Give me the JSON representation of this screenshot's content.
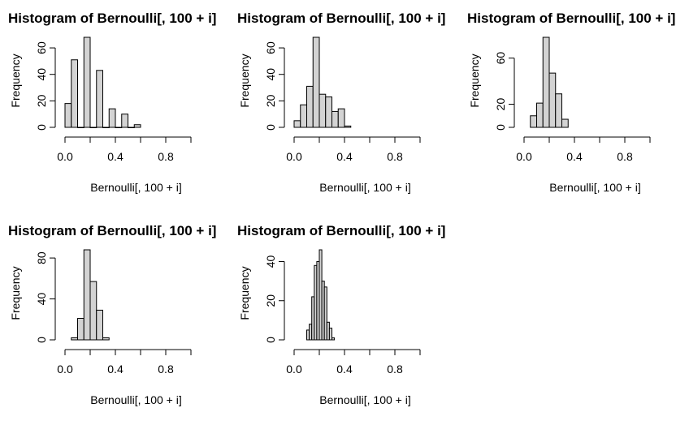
{
  "chart_data": [
    {
      "type": "bar",
      "title": "Histogram of Bernoulli[, 100 + i]",
      "xlabel": "Bernoulli[, 100 + i]",
      "ylabel": "Frequency",
      "xlim": [
        0,
        1
      ],
      "ylim": [
        0,
        68
      ],
      "x_ticks": [
        "0.0",
        "0.4",
        "0.8"
      ],
      "y_ticks": [
        "0",
        "20",
        "40",
        "60"
      ],
      "bins": [
        {
          "x0": 0.0,
          "x1": 0.05,
          "count": 18
        },
        {
          "x0": 0.05,
          "x1": 0.1,
          "count": 51
        },
        {
          "x0": 0.1,
          "x1": 0.15,
          "count": 0
        },
        {
          "x0": 0.15,
          "x1": 0.2,
          "count": 68
        },
        {
          "x0": 0.2,
          "x1": 0.25,
          "count": 0
        },
        {
          "x0": 0.25,
          "x1": 0.3,
          "count": 43
        },
        {
          "x0": 0.3,
          "x1": 0.35,
          "count": 0
        },
        {
          "x0": 0.35,
          "x1": 0.4,
          "count": 14
        },
        {
          "x0": 0.4,
          "x1": 0.45,
          "count": 0
        },
        {
          "x0": 0.45,
          "x1": 0.5,
          "count": 10
        },
        {
          "x0": 0.5,
          "x1": 0.55,
          "count": 0
        },
        {
          "x0": 0.55,
          "x1": 0.6,
          "count": 2
        }
      ]
    },
    {
      "type": "bar",
      "title": "Histogram of Bernoulli[, 100 + i]",
      "xlabel": "Bernoulli[, 100 + i]",
      "ylabel": "Frequency",
      "xlim": [
        0,
        1
      ],
      "ylim": [
        0,
        68
      ],
      "x_ticks": [
        "0.0",
        "0.4",
        "0.8"
      ],
      "y_ticks": [
        "0",
        "20",
        "40",
        "60"
      ],
      "bins": [
        {
          "x0": 0.0,
          "x1": 0.05,
          "count": 5
        },
        {
          "x0": 0.05,
          "x1": 0.1,
          "count": 17
        },
        {
          "x0": 0.1,
          "x1": 0.15,
          "count": 31
        },
        {
          "x0": 0.15,
          "x1": 0.2,
          "count": 68
        },
        {
          "x0": 0.2,
          "x1": 0.25,
          "count": 25
        },
        {
          "x0": 0.25,
          "x1": 0.3,
          "count": 23
        },
        {
          "x0": 0.3,
          "x1": 0.35,
          "count": 12
        },
        {
          "x0": 0.35,
          "x1": 0.4,
          "count": 14
        },
        {
          "x0": 0.4,
          "x1": 0.45,
          "count": 1
        }
      ]
    },
    {
      "type": "bar",
      "title": "Histogram of Bernoulli[, 100 + i]",
      "xlabel": "Bernoulli[, 100 + i]",
      "ylabel": "Frequency",
      "xlim": [
        0,
        1
      ],
      "ylim": [
        0,
        78
      ],
      "x_ticks": [
        "0.0",
        "0.4",
        "0.8"
      ],
      "y_ticks": [
        "0",
        "20",
        "60"
      ],
      "bins": [
        {
          "x0": 0.05,
          "x1": 0.1,
          "count": 10
        },
        {
          "x0": 0.1,
          "x1": 0.15,
          "count": 21
        },
        {
          "x0": 0.15,
          "x1": 0.2,
          "count": 78
        },
        {
          "x0": 0.2,
          "x1": 0.25,
          "count": 47
        },
        {
          "x0": 0.25,
          "x1": 0.3,
          "count": 29
        },
        {
          "x0": 0.3,
          "x1": 0.35,
          "count": 7
        }
      ]
    },
    {
      "type": "bar",
      "title": "Histogram of Bernoulli[, 100 + i]",
      "xlabel": "Bernoulli[, 100 + i]",
      "ylabel": "Frequency",
      "xlim": [
        0,
        1
      ],
      "ylim": [
        0,
        88
      ],
      "x_ticks": [
        "0.0",
        "0.4",
        "0.8"
      ],
      "y_ticks": [
        "0",
        "40",
        "80"
      ],
      "bins": [
        {
          "x0": 0.05,
          "x1": 0.1,
          "count": 2
        },
        {
          "x0": 0.1,
          "x1": 0.15,
          "count": 21
        },
        {
          "x0": 0.15,
          "x1": 0.2,
          "count": 88
        },
        {
          "x0": 0.2,
          "x1": 0.25,
          "count": 57
        },
        {
          "x0": 0.25,
          "x1": 0.3,
          "count": 29
        },
        {
          "x0": 0.3,
          "x1": 0.35,
          "count": 2
        }
      ]
    },
    {
      "type": "bar",
      "title": "Histogram of Bernoulli[, 100 + i]",
      "xlabel": "Bernoulli[, 100 + i]",
      "ylabel": "Frequency",
      "xlim": [
        0,
        1
      ],
      "ylim": [
        0,
        46
      ],
      "x_ticks": [
        "0.0",
        "0.4",
        "0.8"
      ],
      "y_ticks": [
        "0",
        "20",
        "40"
      ],
      "bins": [
        {
          "x0": 0.1,
          "x1": 0.12,
          "count": 5
        },
        {
          "x0": 0.12,
          "x1": 0.14,
          "count": 8
        },
        {
          "x0": 0.14,
          "x1": 0.16,
          "count": 22
        },
        {
          "x0": 0.16,
          "x1": 0.18,
          "count": 38
        },
        {
          "x0": 0.18,
          "x1": 0.2,
          "count": 40
        },
        {
          "x0": 0.2,
          "x1": 0.22,
          "count": 46
        },
        {
          "x0": 0.22,
          "x1": 0.24,
          "count": 30
        },
        {
          "x0": 0.24,
          "x1": 0.26,
          "count": 27
        },
        {
          "x0": 0.26,
          "x1": 0.28,
          "count": 9
        },
        {
          "x0": 0.28,
          "x1": 0.3,
          "count": 6
        },
        {
          "x0": 0.3,
          "x1": 0.32,
          "count": 1
        }
      ]
    }
  ]
}
